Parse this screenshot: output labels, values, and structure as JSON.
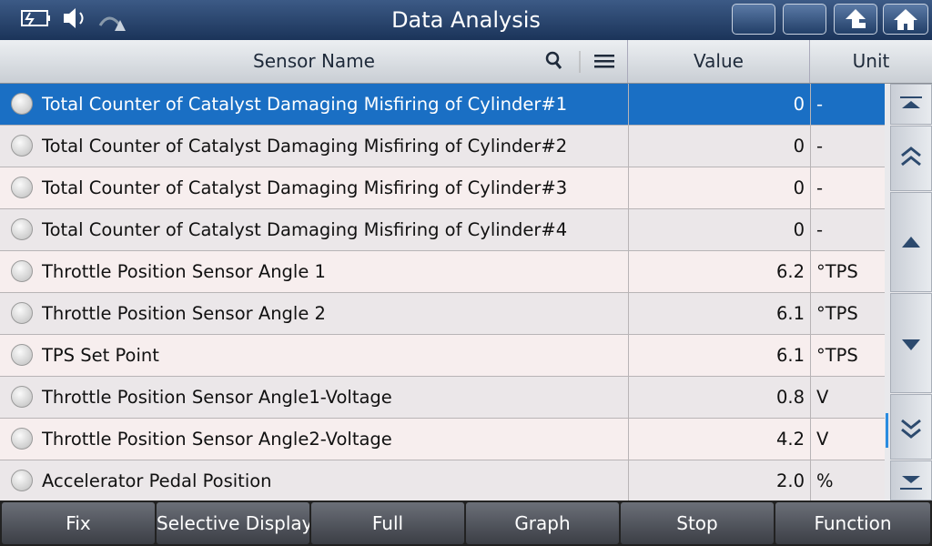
{
  "header": {
    "title": "Data Analysis"
  },
  "table": {
    "columns": [
      "Sensor Name",
      "Value",
      "Unit"
    ],
    "rows": [
      [
        "Total Counter of Catalyst Damaging Misfiring of Cylinder#1",
        "0",
        "-"
      ],
      [
        "Total Counter of Catalyst Damaging Misfiring of Cylinder#2",
        "0",
        "-"
      ],
      [
        "Total Counter of Catalyst Damaging Misfiring of Cylinder#3",
        "0",
        "-"
      ],
      [
        "Total Counter of Catalyst Damaging Misfiring of Cylinder#4",
        "0",
        "-"
      ],
      [
        "Throttle Position Sensor Angle 1",
        "6.2",
        "°TPS"
      ],
      [
        "Throttle Position Sensor Angle 2",
        "6.1",
        "°TPS"
      ],
      [
        "TPS Set Point",
        "6.1",
        "°TPS"
      ],
      [
        "Throttle Position Sensor Angle1-Voltage",
        "0.8",
        "V"
      ],
      [
        "Throttle Position Sensor Angle2-Voltage",
        "4.2",
        "V"
      ],
      [
        "Accelerator Pedal Position",
        "2.0",
        "%"
      ]
    ]
  },
  "footer": {
    "buttons": [
      "Fix",
      "Selective Display",
      "Full",
      "Graph",
      "Stop",
      "Function"
    ]
  }
}
